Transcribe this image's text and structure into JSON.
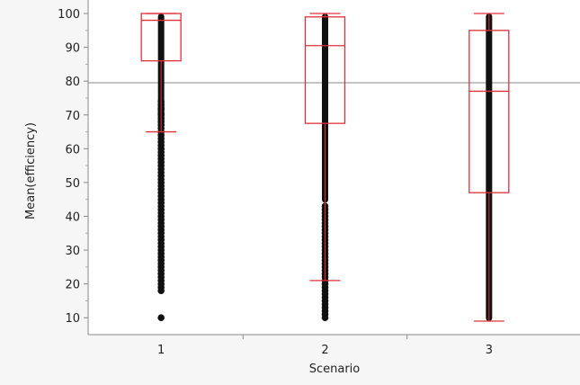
{
  "chart_data": {
    "type": "box",
    "xlabel": "Scenario",
    "ylabel": "Mean(efficiency)",
    "categories": [
      "1",
      "2",
      "3"
    ],
    "ylim": [
      5,
      104
    ],
    "yticks": [
      10,
      20,
      30,
      40,
      50,
      60,
      70,
      80,
      90,
      100
    ],
    "reference_line": 79.5,
    "grid": false,
    "colors": {
      "box": "#e0303a",
      "points": "#111111",
      "reference": "#888888"
    },
    "boxes": [
      {
        "category": "1",
        "whisker_low": 65,
        "q1": 86,
        "median": 98,
        "q3": 100,
        "whisker_high": 100,
        "dense_range": [
          66,
          100
        ],
        "points": [
          74,
          73,
          72,
          71.5,
          70.5,
          70,
          69,
          68,
          67,
          66,
          65,
          64,
          63,
          62,
          61,
          60,
          59,
          58,
          57,
          56,
          55,
          54,
          53,
          52,
          51,
          50,
          49,
          48,
          47,
          46,
          45,
          44,
          43,
          42,
          41,
          40,
          39,
          38,
          37,
          36,
          35,
          34,
          33,
          32,
          31,
          30,
          29,
          28,
          27,
          26,
          25,
          24,
          23,
          22,
          21,
          20,
          19,
          18,
          10
        ]
      },
      {
        "category": "2",
        "whisker_low": 21,
        "q1": 67.5,
        "median": 90.5,
        "q3": 99,
        "whisker_high": 100,
        "dense_range": [
          44,
          100
        ],
        "points": [
          43,
          42,
          41,
          40,
          39,
          38,
          37,
          36,
          35,
          34,
          33,
          32,
          31,
          30,
          29,
          28,
          27,
          26,
          25,
          24,
          23,
          22,
          21,
          20,
          19,
          18,
          17,
          16,
          15,
          14,
          13,
          12,
          11,
          10
        ]
      },
      {
        "category": "3",
        "whisker_low": 9,
        "q1": 47,
        "median": 77,
        "q3": 95,
        "whisker_high": 100,
        "dense_range": [
          9,
          100
        ],
        "points": []
      }
    ]
  }
}
